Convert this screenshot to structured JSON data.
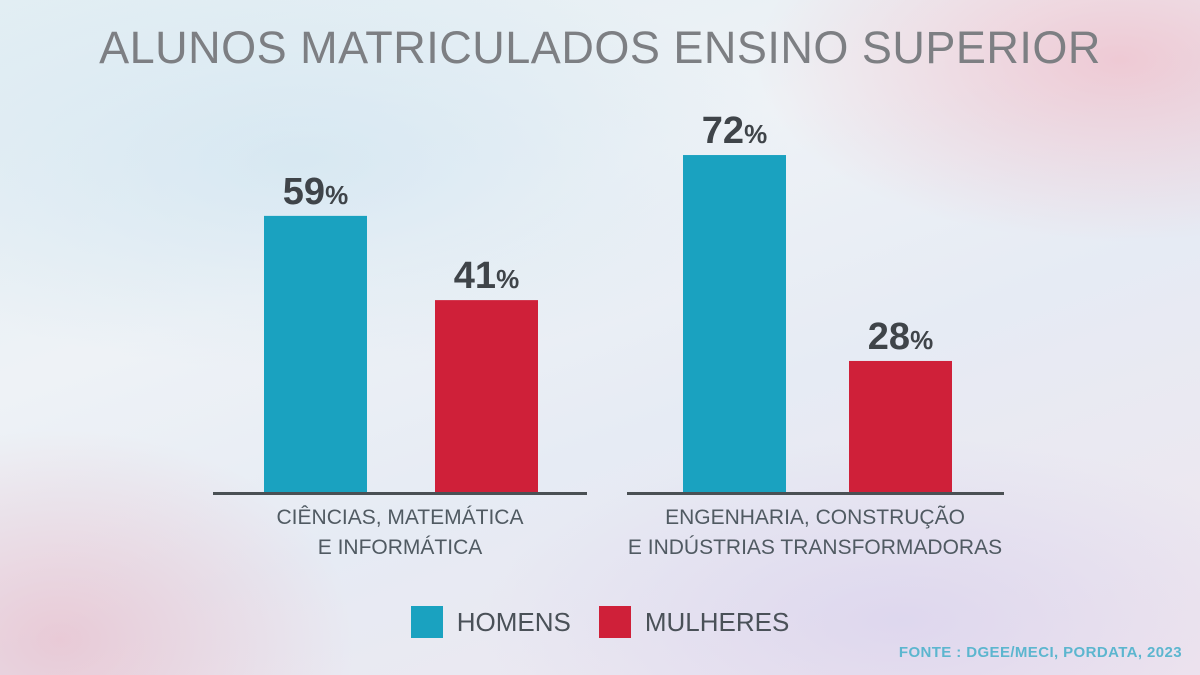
{
  "title": "ALUNOS MATRICULADOS ENSINO SUPERIOR",
  "source": "FONTE : DGEE/MECI, PORDATA, 2023",
  "colors": {
    "homens": "#1aa2c0",
    "mulheres": "#cf2039",
    "axis": "#4a5054",
    "value_text": "#3f4449"
  },
  "chart_data": {
    "type": "bar",
    "categories": [
      "CIÊNCIAS, MATEMÁTICA\nE INFORMÁTICA",
      "ENGENHARIA,  CONSTRUÇÃO\nE INDÚSTRIAS TRANSFORMADORAS"
    ],
    "series": [
      {
        "name": "HOMENS",
        "values": [
          59,
          72
        ]
      },
      {
        "name": "MULHERES",
        "values": [
          41,
          28
        ]
      }
    ],
    "value_labels": [
      [
        "59",
        "72"
      ],
      [
        "41",
        "28"
      ]
    ],
    "unit": "%",
    "ylim": [
      0,
      100
    ],
    "grid": false,
    "legend_position": "bottom-center"
  }
}
